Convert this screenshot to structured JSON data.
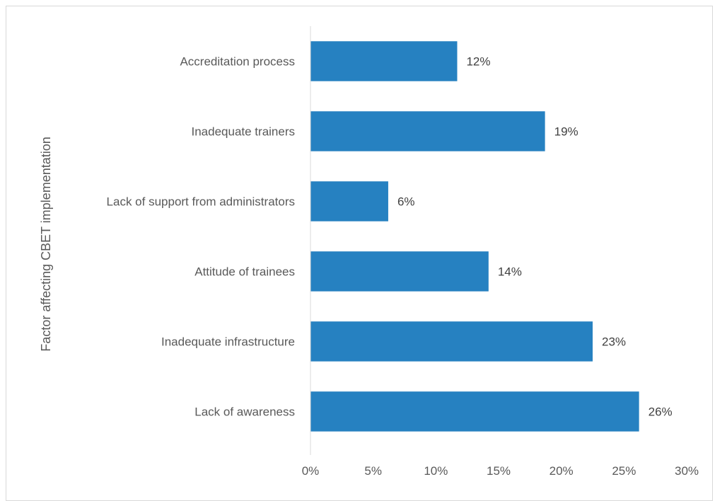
{
  "chart_data": {
    "type": "bar",
    "orientation": "horizontal",
    "title": "",
    "xlabel": "",
    "ylabel": "Factor affecting CBET implementation",
    "categories": [
      "Accreditation process",
      "Inadequate trainers",
      "Lack of support from administrators",
      "Attitude of trainees",
      "Inadequate infrastructure",
      "Lack of awareness"
    ],
    "values": [
      0.117,
      0.187,
      0.062,
      0.142,
      0.225,
      0.262
    ],
    "data_labels": [
      "12%",
      "19%",
      "6%",
      "14%",
      "23%",
      "26%"
    ],
    "xlim": [
      0,
      0.3
    ],
    "x_ticks": [
      0,
      0.05,
      0.1,
      0.15,
      0.2,
      0.25,
      0.3
    ],
    "x_tick_labels": [
      "0%",
      "5%",
      "10%",
      "15%",
      "20%",
      "25%",
      "30%"
    ],
    "bar_color": "#2681c1",
    "grid": false,
    "legend": "none"
  }
}
